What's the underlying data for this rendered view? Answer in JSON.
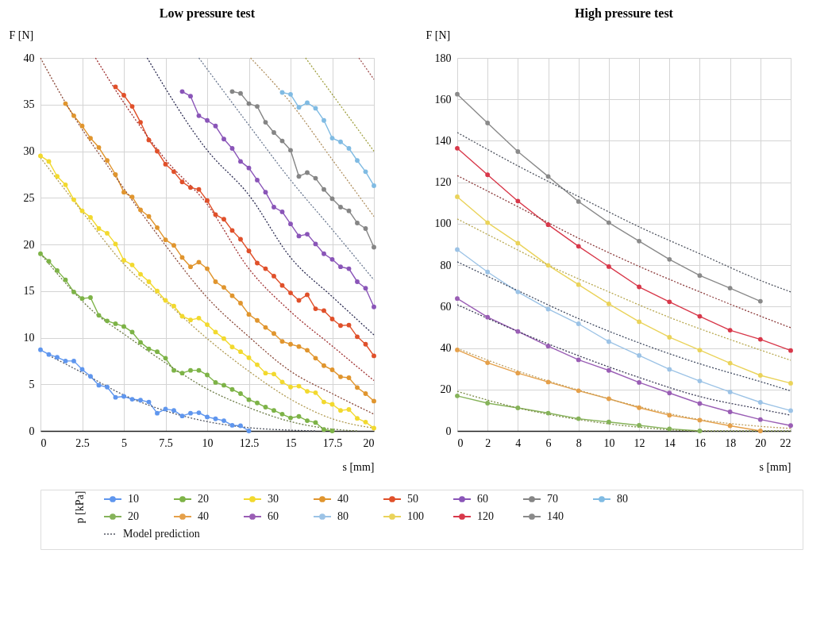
{
  "chart_data": [
    {
      "type": "line",
      "title": "Low pressure test",
      "xlabel": "s [mm]",
      "ylabel": "F [N]",
      "legend_title": "p [kPa]",
      "legend": "bottom",
      "grid": true,
      "xlim": [
        0,
        20
      ],
      "xticks": [
        0,
        2.5,
        5,
        7.5,
        10,
        12.5,
        15,
        17.5,
        20
      ],
      "ylim": [
        0,
        40
      ],
      "yticks": [
        0,
        5,
        10,
        15,
        20,
        25,
        30,
        35,
        40
      ],
      "series": [
        {
          "name": "10",
          "color": "#5f96ee",
          "marker": "circle",
          "line_style": "solid",
          "x": [
            0,
            0.5,
            1,
            1.5,
            2,
            2.5,
            3,
            3.5,
            4,
            4.5,
            5,
            5.5,
            6,
            6.5,
            7,
            7.5,
            8,
            8.5,
            9,
            9.5,
            10,
            10.5,
            11,
            11.5,
            12,
            12.5
          ],
          "values": [
            8.7,
            8.2,
            7.9,
            7.5,
            7.5,
            6.6,
            5.85,
            4.9,
            4.7,
            3.6,
            3.7,
            3.4,
            3.3,
            3.1,
            1.9,
            2.35,
            2.2,
            1.6,
            1.9,
            1.95,
            1.5,
            1.3,
            1.1,
            0.6,
            0.55,
            0
          ]
        },
        {
          "name": "20",
          "color": "#7db347",
          "marker": "circle",
          "line_style": "solid",
          "x": [
            0,
            0.5,
            1,
            1.5,
            2,
            2.5,
            3,
            3.5,
            4,
            4.5,
            5,
            5.5,
            6,
            6.5,
            7,
            7.5,
            8,
            8.5,
            9,
            9.5,
            10,
            10.5,
            11,
            11.5,
            12,
            12.5,
            13,
            13.5,
            14,
            14.5,
            15,
            15.5,
            16,
            16.5,
            17,
            17.5
          ],
          "values": [
            19.0,
            18.2,
            17.2,
            16.2,
            14.9,
            14.2,
            14.3,
            12.4,
            11.8,
            11.5,
            11.2,
            10.6,
            9.5,
            8.8,
            8.5,
            7.8,
            6.5,
            6.2,
            6.5,
            6.5,
            6.0,
            5.2,
            4.9,
            4.45,
            4.0,
            3.35,
            3.0,
            2.55,
            2.2,
            1.8,
            1.4,
            1.55,
            1.1,
            0.9,
            0.15,
            0
          ]
        },
        {
          "name": "30",
          "color": "#f2d92e",
          "marker": "circle",
          "line_style": "solid",
          "x": [
            0,
            0.5,
            1,
            1.5,
            2,
            2.5,
            3,
            3.5,
            4,
            4.5,
            5,
            5.5,
            6,
            6.5,
            7,
            7.5,
            8,
            8.5,
            9,
            9.5,
            10,
            10.5,
            11,
            11.5,
            12,
            12.5,
            13,
            13.5,
            14,
            14.5,
            15,
            15.5,
            16,
            16.5,
            17,
            17.5,
            18,
            18.5,
            19,
            19.5,
            20
          ],
          "values": [
            29.5,
            28.9,
            27.3,
            26.4,
            24.8,
            23.6,
            22.9,
            21.7,
            21.2,
            20.05,
            18.3,
            17.8,
            16.8,
            16.0,
            15.0,
            14.0,
            13.4,
            12.3,
            11.9,
            12.1,
            11.4,
            10.6,
            9.9,
            9.0,
            8.5,
            7.85,
            7.1,
            6.2,
            6.1,
            5.25,
            4.7,
            4.8,
            4.25,
            4.1,
            3.1,
            2.85,
            2.2,
            2.3,
            1.35,
            0.95,
            0.3
          ]
        },
        {
          "name": "40",
          "color": "#e0952e",
          "marker": "circle",
          "line_style": "solid",
          "x": [
            1.5,
            2,
            2.5,
            3,
            3.5,
            4,
            4.5,
            5,
            5.5,
            6,
            6.5,
            7,
            7.5,
            8,
            8.5,
            9,
            9.5,
            10,
            10.5,
            11,
            11.5,
            12,
            12.5,
            13,
            13.5,
            14,
            14.5,
            15,
            15.5,
            16,
            16.5,
            17,
            17.5,
            18,
            18.5,
            19,
            19.5,
            20
          ],
          "values": [
            35.1,
            33.8,
            32.7,
            31.4,
            30.4,
            29.0,
            27.5,
            25.6,
            25.1,
            23.7,
            23.0,
            21.8,
            20.5,
            19.9,
            18.6,
            17.6,
            18.1,
            17.4,
            16.0,
            15.4,
            14.5,
            13.7,
            12.5,
            11.85,
            11.1,
            10.45,
            9.6,
            9.3,
            9.05,
            8.65,
            7.8,
            7.0,
            6.55,
            5.8,
            5.7,
            4.65,
            4.0,
            3.2
          ]
        },
        {
          "name": "50",
          "color": "#e0502a",
          "marker": "circle",
          "line_style": "solid",
          "x": [
            4.5,
            5,
            5.5,
            6,
            6.5,
            7,
            7.5,
            8,
            8.5,
            9,
            9.5,
            10,
            10.5,
            11,
            11.5,
            12,
            12.5,
            13,
            13.5,
            14,
            14.5,
            15,
            15.5,
            16,
            16.5,
            17,
            17.5,
            18,
            18.5,
            19,
            19.5,
            20
          ],
          "values": [
            36.9,
            36.0,
            34.8,
            33.1,
            31.2,
            30.0,
            28.6,
            27.8,
            26.7,
            26.1,
            25.9,
            24.7,
            23.2,
            22.7,
            21.5,
            20.55,
            19.3,
            18.0,
            17.4,
            16.6,
            15.6,
            14.8,
            14.0,
            14.6,
            13.1,
            12.9,
            12.0,
            11.3,
            11.35,
            10.1,
            9.3,
            8.05
          ]
        },
        {
          "name": "60",
          "color": "#8a55b8",
          "marker": "circle",
          "line_style": "solid",
          "x": [
            8.5,
            9,
            9.5,
            10,
            10.5,
            11,
            11.5,
            12,
            12.5,
            13,
            13.5,
            14,
            14.5,
            15,
            15.5,
            16,
            16.5,
            17,
            17.5,
            18,
            18.5,
            19,
            19.5,
            20
          ],
          "values": [
            36.4,
            35.9,
            33.8,
            33.3,
            32.7,
            31.3,
            30.3,
            28.9,
            28.2,
            26.9,
            25.6,
            24.0,
            23.5,
            22.2,
            20.9,
            21.1,
            20.05,
            19.0,
            18.4,
            17.6,
            17.4,
            16.0,
            15.3,
            13.3
          ]
        },
        {
          "name": "70",
          "color": "#858585",
          "marker": "circle",
          "line_style": "solid",
          "x": [
            11.5,
            12,
            12.5,
            13,
            13.5,
            14,
            14.5,
            15,
            15.5,
            16,
            16.5,
            17,
            17.5,
            18,
            18.5,
            19,
            19.5,
            20
          ],
          "values": [
            36.4,
            36.2,
            35.1,
            34.8,
            33.1,
            32.0,
            31.1,
            30.1,
            27.3,
            27.7,
            27.1,
            25.9,
            24.9,
            24.0,
            23.6,
            22.3,
            21.7,
            19.7
          ]
        },
        {
          "name": "80",
          "color": "#80bbe3",
          "marker": "circle",
          "line_style": "solid",
          "x": [
            14.5,
            15,
            15.5,
            16,
            16.5,
            17,
            17.5,
            18,
            18.5,
            19,
            19.5,
            20
          ],
          "values": [
            36.3,
            36.1,
            34.7,
            35.2,
            34.6,
            33.3,
            31.4,
            31.0,
            30.3,
            29.0,
            27.8,
            26.3
          ]
        },
        {
          "name": "Model prediction",
          "color": "#555a66",
          "marker": "none",
          "line_style": "dotted",
          "x": [
            0.5,
            2.5,
            5,
            7.5,
            10,
            12.5,
            15,
            16.5
          ],
          "values": [
            8.1,
            6.25,
            3.85,
            2.15,
            1.0,
            0.35,
            0.08,
            0
          ]
        },
        {
          "color": "#6b7a45",
          "marker": "none",
          "line_style": "dotted",
          "x": [
            0,
            3.5,
            5,
            7.5,
            10,
            12.5,
            15,
            17.5,
            19
          ],
          "values": [
            19.0,
            12.3,
            10.4,
            7.3,
            4.5,
            2.5,
            1.0,
            0.2,
            0
          ]
        },
        {
          "color": "#b09a50",
          "marker": "none",
          "line_style": "dotted",
          "x": [
            0,
            2.5,
            5,
            7.5,
            10,
            12.5,
            15,
            17.5,
            20
          ],
          "values": [
            29.3,
            23.5,
            17.9,
            13.9,
            9.9,
            6.4,
            3.4,
            1.3,
            0.3
          ]
        },
        {
          "color": "#8b4a3a",
          "marker": "none",
          "line_style": "dotted",
          "x": [
            0,
            1.5,
            5,
            7.5,
            10,
            12.5,
            15,
            17.5,
            20
          ],
          "values": [
            40,
            35.2,
            26.0,
            19.9,
            14.3,
            10.1,
            6.4,
            4.0,
            1.8
          ]
        },
        {
          "color": "#a03030",
          "marker": "none",
          "line_style": "dotted",
          "x": [
            3.3,
            5,
            7.5,
            10,
            12.5,
            15,
            17.5,
            20
          ],
          "values": [
            40,
            35.2,
            29.1,
            24.3,
            17.4,
            12.8,
            9.1,
            5.4
          ]
        },
        {
          "color": "#2a2a50",
          "marker": "none",
          "line_style": "dotted",
          "x": [
            6.4,
            10,
            12.5,
            15,
            17.5,
            20
          ],
          "values": [
            40,
            30.1,
            25.3,
            18.6,
            14.4,
            10.3
          ]
        },
        {
          "color": "#6a7890",
          "marker": "none",
          "line_style": "dotted",
          "x": [
            9.5,
            12.5,
            15,
            17.5,
            20
          ],
          "values": [
            40,
            32.8,
            26.9,
            21.6,
            16.2
          ]
        },
        {
          "color": "#b09060",
          "marker": "none",
          "line_style": "dotted",
          "x": [
            12.6,
            15,
            17.5,
            20
          ],
          "values": [
            40,
            35.2,
            29.1,
            23.0
          ]
        },
        {
          "color": "#a0a040",
          "marker": "none",
          "line_style": "dotted",
          "x": [
            15.9,
            20
          ],
          "values": [
            40,
            30.0
          ]
        },
        {
          "color": "#a05050",
          "marker": "none",
          "line_style": "dotted",
          "x": [
            19.1,
            20
          ],
          "values": [
            40,
            37.7
          ]
        }
      ]
    },
    {
      "type": "line",
      "title": "High pressure test",
      "xlabel": "s [mm]",
      "ylabel": "F [N]",
      "legend": "bottom",
      "grid": true,
      "xlim": [
        0,
        22
      ],
      "xticks": [
        0,
        2,
        4,
        6,
        8,
        10,
        12,
        14,
        16,
        18,
        20,
        22
      ],
      "ylim": [
        0,
        180
      ],
      "yticks": [
        0,
        20,
        40,
        60,
        80,
        100,
        120,
        140,
        160,
        180
      ],
      "series": [
        {
          "name": "20",
          "color": "#86b35a",
          "marker": "circle",
          "line_style": "solid",
          "x": [
            0,
            2,
            4,
            6,
            8,
            10,
            12,
            14,
            16
          ],
          "values": [
            16.9,
            13.4,
            11.1,
            8.6,
            5.9,
            4.3,
            2.7,
            1.0,
            0
          ]
        },
        {
          "name": "40",
          "color": "#e5a04a",
          "marker": "circle",
          "line_style": "solid",
          "x": [
            0,
            2,
            4,
            6,
            8,
            10,
            12,
            14,
            16,
            18,
            20
          ],
          "values": [
            39.1,
            32.9,
            27.9,
            23.6,
            19.4,
            15.5,
            11.2,
            7.6,
            5.2,
            2.5,
            0
          ]
        },
        {
          "name": "60",
          "color": "#9a5eb5",
          "marker": "circle",
          "line_style": "solid",
          "x": [
            0,
            2,
            4,
            6,
            8,
            10,
            12,
            14,
            16,
            18,
            20,
            22
          ],
          "values": [
            63.9,
            54.9,
            48.0,
            40.9,
            34.3,
            29.2,
            23.4,
            18.3,
            13.2,
            9.2,
            5.5,
            2.6
          ]
        },
        {
          "name": "80",
          "color": "#9cc3e6",
          "marker": "circle",
          "line_style": "solid",
          "x": [
            0,
            2,
            4,
            6,
            8,
            10,
            12,
            14,
            16,
            18,
            20,
            22
          ],
          "values": [
            87.5,
            76.7,
            67.1,
            58.8,
            51.7,
            43.1,
            36.4,
            29.7,
            24.1,
            18.8,
            13.8,
            9.8
          ]
        },
        {
          "name": "100",
          "color": "#ead35a",
          "marker": "circle",
          "line_style": "solid",
          "x": [
            0,
            2,
            4,
            6,
            8,
            10,
            12,
            14,
            16,
            18,
            20,
            22
          ],
          "values": [
            113.0,
            100.5,
            90.6,
            79.9,
            70.6,
            61.3,
            52.7,
            45.2,
            39.0,
            32.7,
            26.8,
            23.0
          ]
        },
        {
          "name": "120",
          "color": "#d8384a",
          "marker": "circle",
          "line_style": "solid",
          "x": [
            0,
            2,
            4,
            6,
            8,
            10,
            12,
            14,
            16,
            18,
            20,
            22
          ],
          "values": [
            136.4,
            123.6,
            110.9,
            99.5,
            89.1,
            79.3,
            69.5,
            62.3,
            55.3,
            48.6,
            44.2,
            38.8
          ]
        },
        {
          "name": "140",
          "color": "#8a8a8a",
          "marker": "circle",
          "line_style": "solid",
          "x": [
            0,
            2,
            4,
            6,
            8,
            10,
            12,
            14,
            16,
            18,
            20
          ],
          "values": [
            162.5,
            148.6,
            134.8,
            122.8,
            110.7,
            100.5,
            91.6,
            82.8,
            75.0,
            68.9,
            62.6
          ]
        },
        {
          "color": "#7a8a45",
          "marker": "none",
          "line_style": "dotted",
          "x": [
            0,
            4,
            8,
            12,
            16,
            22
          ],
          "values": [
            19.1,
            11.1,
            5.5,
            1.8,
            0,
            0
          ]
        },
        {
          "color": "#c0a060",
          "marker": "none",
          "line_style": "dotted",
          "x": [
            0,
            4,
            8,
            12,
            16,
            20,
            22
          ],
          "values": [
            39.8,
            28.9,
            19.7,
            11.7,
            5.5,
            2.2,
            1.2
          ]
        },
        {
          "color": "#3a3a55",
          "marker": "none",
          "line_style": "dotted",
          "x": [
            0,
            4,
            8,
            12,
            16,
            20,
            22
          ],
          "values": [
            60.9,
            48.0,
            36.3,
            25.8,
            16.6,
            10.5,
            7.6
          ]
        },
        {
          "color": "#404a60",
          "marker": "none",
          "line_style": "dotted",
          "x": [
            0,
            4,
            8,
            12,
            16,
            20,
            22
          ],
          "values": [
            81.6,
            67.7,
            54.2,
            42.5,
            32.4,
            23.8,
            19.3
          ]
        },
        {
          "color": "#b8a850",
          "marker": "none",
          "line_style": "dotted",
          "x": [
            0,
            2,
            6,
            10,
            14,
            18,
            22
          ],
          "values": [
            102.3,
            94.8,
            80.0,
            67.1,
            54.8,
            44.1,
            34.1
          ]
        },
        {
          "color": "#8b3a3a",
          "marker": "none",
          "line_style": "dotted",
          "x": [
            0,
            4,
            8,
            12,
            16,
            20,
            22
          ],
          "values": [
            123.2,
            108.2,
            93.0,
            79.4,
            67.1,
            55.4,
            49.8
          ]
        },
        {
          "color": "#505560",
          "marker": "none",
          "line_style": "dotted",
          "x": [
            0,
            4,
            8,
            12,
            16,
            20,
            22
          ],
          "values": [
            144.0,
            127.9,
            113.1,
            98.5,
            85.5,
            72.6,
            67.1
          ]
        }
      ]
    }
  ]
}
